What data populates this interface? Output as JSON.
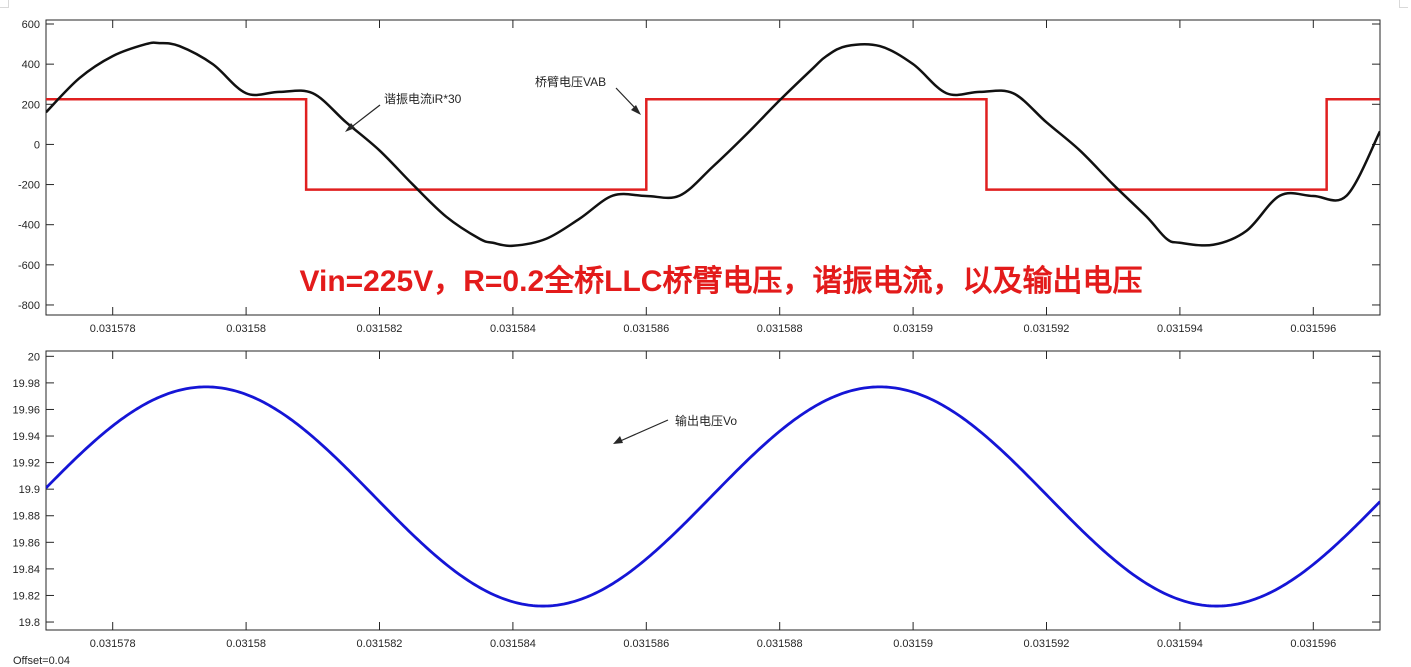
{
  "colors": {
    "voltage": "#e02020",
    "current": "#111111",
    "output": "#1515d6",
    "title": "#e31b1b",
    "axis": "#262626",
    "grid": "#d0d0d0"
  },
  "footer": {
    "offset_text": "Offset=0.04"
  },
  "chart_data": [
    {
      "type": "line",
      "title": "Vin=225V，R=0.2全桥LLC桥臂电压，谐振电流，以及输出电压",
      "xlim": [
        0.031577,
        0.031597
      ],
      "ylim": [
        -850,
        620
      ],
      "x_ticks": [
        "0.031578",
        "0.03158",
        "0.031582",
        "0.031584",
        "0.031586",
        "0.031588",
        "0.03159",
        "0.031592",
        "0.031594",
        "0.031596"
      ],
      "y_ticks": [
        "600",
        "400",
        "200",
        "0",
        "-200",
        "-400",
        "-600",
        "-800"
      ],
      "grid": "ticks-only",
      "series": [
        {
          "name": "桥臂电压VAB",
          "color_key": "voltage",
          "x": [
            0.031577,
            0.0315809,
            0.0315809,
            0.031586,
            0.031586,
            0.0315911,
            0.0315911,
            0.0315962,
            0.0315962,
            0.031597
          ],
          "y": [
            225,
            225,
            -225,
            -225,
            225,
            225,
            -225,
            -225,
            225,
            225
          ]
        },
        {
          "name": "谐振电流iR*30",
          "color_key": "current",
          "x": [
            0.031577,
            0.0315775,
            0.031578,
            0.0315785,
            0.0315787,
            0.031579,
            0.0315795,
            0.03158,
            0.0315805,
            0.031581,
            0.0315815,
            0.031582,
            0.0315825,
            0.031583,
            0.0315835,
            0.0315837,
            0.031584,
            0.0315845,
            0.031585,
            0.0315855,
            0.031586,
            0.0315865,
            0.031587,
            0.0315875,
            0.031588,
            0.0315885,
            0.0315887,
            0.031589,
            0.0315895,
            0.03159,
            0.0315905,
            0.031591,
            0.0315915,
            0.031592,
            0.0315925,
            0.031593,
            0.0315935,
            0.0315938,
            0.031594,
            0.0315945,
            0.031595,
            0.0315955,
            0.031596,
            0.0315965,
            0.031597
          ],
          "y": [
            160,
            330,
            440,
            500,
            505,
            490,
            400,
            255,
            262,
            255,
            110,
            -30,
            -200,
            -360,
            -470,
            -490,
            -505,
            -470,
            -370,
            -255,
            -257,
            -255,
            -110,
            50,
            220,
            380,
            440,
            490,
            490,
            400,
            255,
            262,
            255,
            110,
            -30,
            -200,
            -360,
            -470,
            -490,
            -500,
            -430,
            -255,
            -257,
            -255,
            65
          ]
        }
      ],
      "annotations": [
        {
          "text": "谐振电流iR*30"
        },
        {
          "text": "桥臂电压VAB"
        }
      ]
    },
    {
      "type": "line",
      "title": "",
      "xlim": [
        0.031577,
        0.031597
      ],
      "ylim": [
        19.794,
        20.004
      ],
      "x_ticks": [
        "0.031578",
        "0.03158",
        "0.031582",
        "0.031584",
        "0.031586",
        "0.031588",
        "0.03159",
        "0.031592",
        "0.031594",
        "0.031596"
      ],
      "y_ticks": [
        "20",
        "19.98",
        "19.96",
        "19.94",
        "19.92",
        "19.9",
        "19.88",
        "19.86",
        "19.84",
        "19.82",
        "19.8"
      ],
      "grid": "ticks-only",
      "series": [
        {
          "name": "输出电压Vo",
          "color_key": "output",
          "min": 19.812,
          "max": 19.977,
          "peak_x": 0.0315794,
          "period": 1.01e-05
        }
      ],
      "annotations": [
        {
          "text": "输出电压Vo"
        }
      ]
    }
  ]
}
